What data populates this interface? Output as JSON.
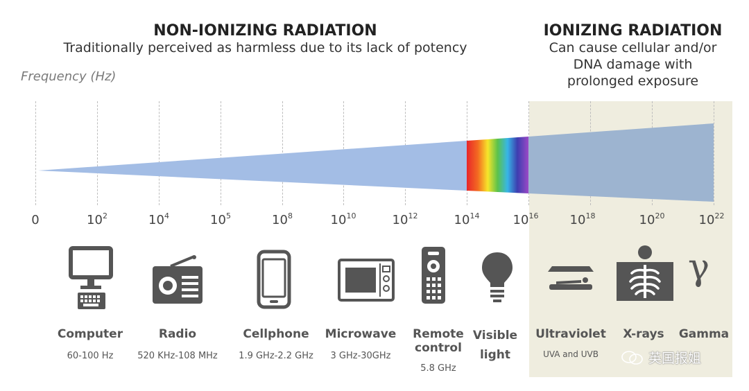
{
  "non_ionizing": {
    "title": "NON-IONIZING RADIATION",
    "subtitle": "Traditionally perceived as harmless due to its lack of potency"
  },
  "ionizing": {
    "title": "IONIZING RADIATION",
    "subtitle_lines": [
      "Can cause cellular and/or",
      "DNA damage with",
      "prolonged exposure"
    ]
  },
  "axis": {
    "label": "Frequency (Hz)",
    "ticks": [
      {
        "base": "0",
        "exp": ""
      },
      {
        "base": "10",
        "exp": "2"
      },
      {
        "base": "10",
        "exp": "4"
      },
      {
        "base": "10",
        "exp": "5"
      },
      {
        "base": "10",
        "exp": "8"
      },
      {
        "base": "10",
        "exp": "10"
      },
      {
        "base": "10",
        "exp": "12"
      },
      {
        "base": "10",
        "exp": "14"
      },
      {
        "base": "10",
        "exp": "16"
      },
      {
        "base": "10",
        "exp": "18"
      },
      {
        "base": "10",
        "exp": "20"
      },
      {
        "base": "10",
        "exp": "22"
      }
    ]
  },
  "sources": [
    {
      "label": "Computer",
      "range": "60-100 Hz"
    },
    {
      "label": "Radio",
      "range": "520 KHz-108 MHz"
    },
    {
      "label": "Cellphone",
      "range": "1.9 GHz-2.2 GHz"
    },
    {
      "label": "Microwave",
      "range": "3 GHz-30GHz"
    },
    {
      "label_lines": [
        "Remote",
        "control"
      ],
      "range": "5.8 GHz"
    },
    {
      "label_lines": [
        "Visible",
        "light"
      ],
      "range": ""
    },
    {
      "label": "Ultraviolet",
      "range": "UVA and UVB"
    },
    {
      "label": "X-rays",
      "range": ""
    },
    {
      "label": "Gamma",
      "range": ""
    }
  ],
  "gamma_symbol": "γ",
  "watermark": "英国报姐",
  "colors": {
    "non_ionizing_band": "#a3bde5",
    "ionizing_band": "#9db4d0",
    "ionizing_bg": "#efeddf",
    "icon": "#555555"
  }
}
